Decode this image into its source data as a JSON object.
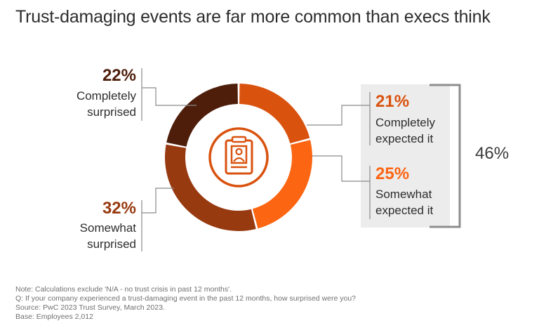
{
  "title": "Trust-damaging events are far more common than execs think",
  "colors": {
    "completely_surprised": "#4e1e0b",
    "somewhat_surprised": "#983a10",
    "completely_expected": "#d9520e",
    "somewhat_expected": "#fc6512",
    "leader_line": "#8a8a8a",
    "bracket": "#8e8e8e",
    "highlight_box": "#ececec"
  },
  "chart_data": {
    "type": "pie",
    "variant": "donut",
    "center_icon": "id-badge-icon",
    "slices": [
      {
        "pct_label": "21%",
        "label": "Completely expected it",
        "lines": [
          "Completely",
          "expected it"
        ],
        "value": 21
      },
      {
        "pct_label": "25%",
        "label": "Somewhat expected it",
        "lines": [
          "Somewhat",
          "expected it"
        ],
        "value": 25
      },
      {
        "pct_label": "32%",
        "label": "Somewhat surprised",
        "lines": [
          "Somewhat",
          "surprised"
        ],
        "value": 32
      },
      {
        "pct_label": "22%",
        "label": "Completely surprised",
        "lines": [
          "Completely",
          "surprised"
        ],
        "value": 22
      }
    ],
    "group_total": {
      "label": "46%",
      "value": 46,
      "includes": [
        "Completely expected it",
        "Somewhat expected it"
      ]
    }
  },
  "notes": [
    "Note: Calculations exclude 'N/A - no trust crisis in past 12 months'.",
    "Q: If your company experienced a trust-damaging event in the past 12 months, how surprised were you?",
    "Source: PwC 2023 Trust Survey, March 2023.",
    "Base: Employees 2,012"
  ]
}
